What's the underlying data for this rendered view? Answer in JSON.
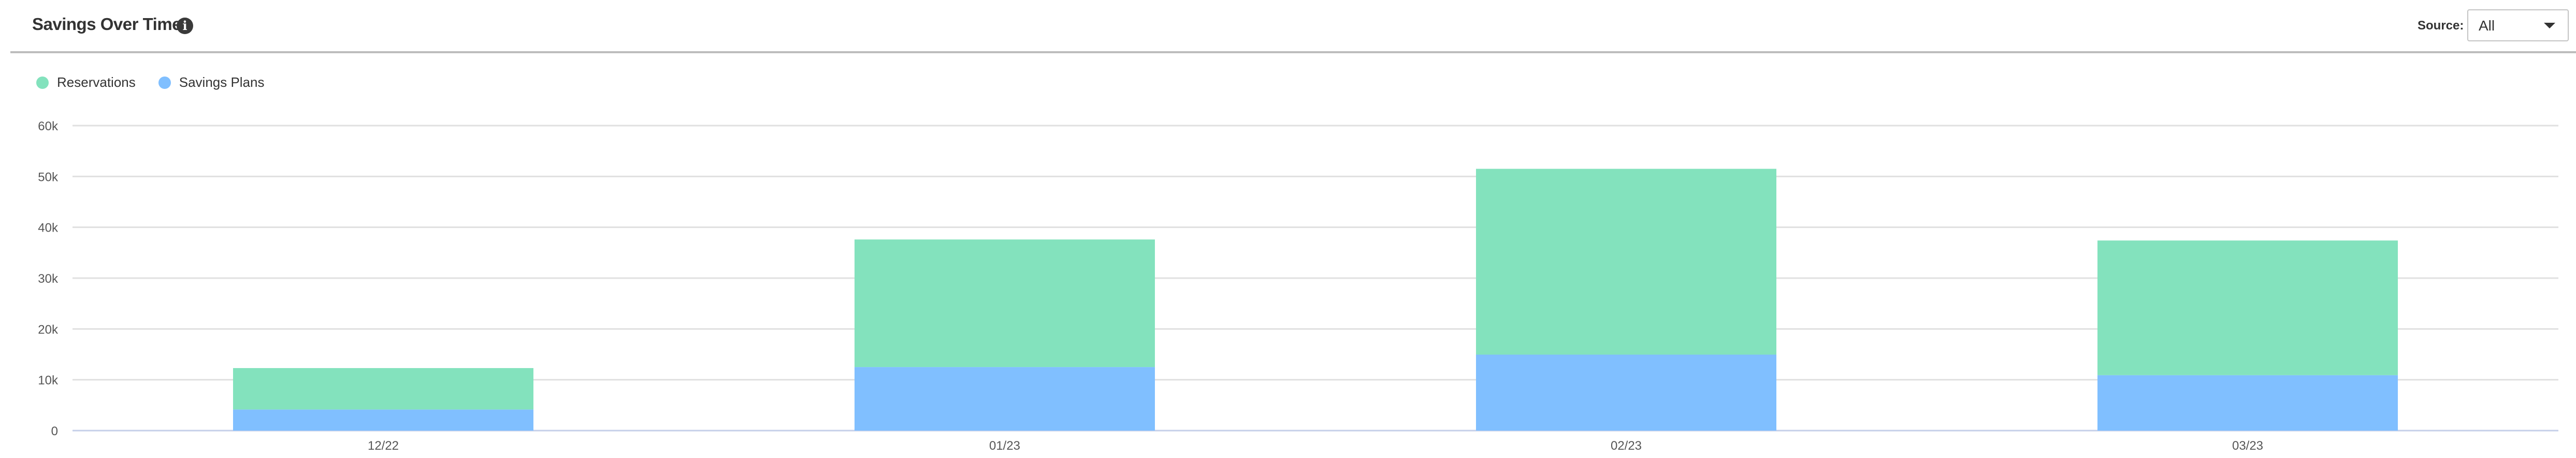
{
  "header": {
    "title": "Savings Over Time",
    "info_icon": "info-circle-icon",
    "source_label": "Source:",
    "source_value": "All",
    "dropdown_icon": "caret-down-icon"
  },
  "chart_data": {
    "type": "bar",
    "stacked": true,
    "categories": [
      "12/22",
      "01/23",
      "02/23",
      "03/23"
    ],
    "series": [
      {
        "name": "Savings Plans",
        "color": "#80bfff",
        "values": [
          4150,
          12500,
          14950,
          10900
        ]
      },
      {
        "name": "Reservations",
        "color": "#83e2bd",
        "values": [
          8150,
          25100,
          36550,
          26500
        ]
      }
    ],
    "legend_order": [
      "Reservations",
      "Savings Plans"
    ],
    "ylim": [
      0,
      60000
    ],
    "yticks": [
      0,
      10000,
      20000,
      30000,
      40000,
      50000,
      60000
    ],
    "ytick_labels": [
      "0",
      "10k",
      "20k",
      "30k",
      "40k",
      "50k",
      "60k"
    ],
    "grid": true,
    "legend_position": "top-left",
    "title": "",
    "xlabel": "",
    "ylabel": ""
  }
}
